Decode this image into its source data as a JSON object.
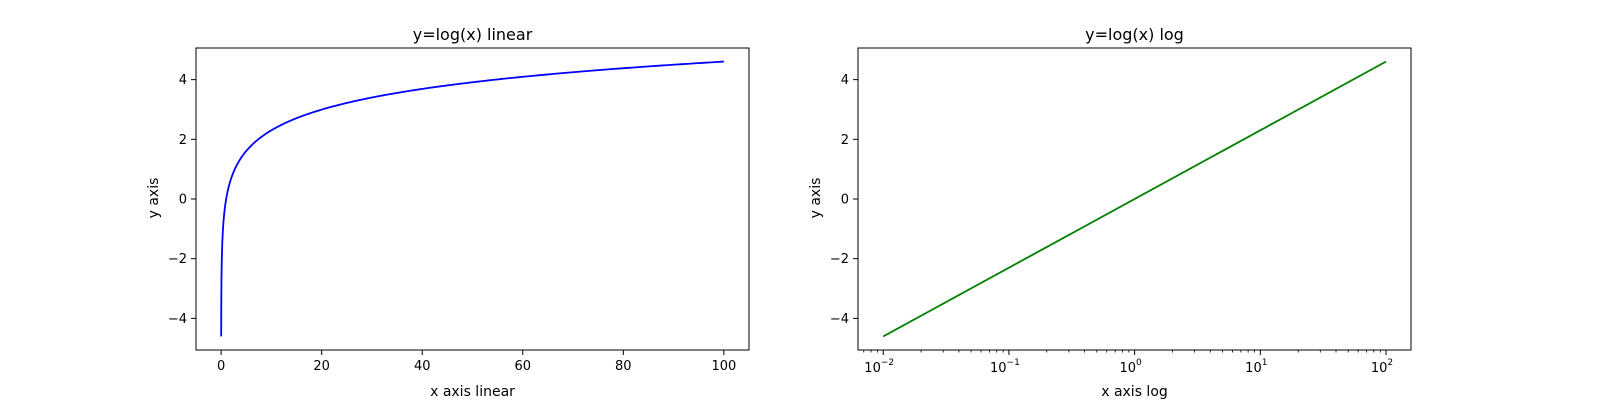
{
  "chart_data": [
    {
      "type": "line",
      "title": "y=log(x) linear",
      "xlabel": "x axis linear",
      "ylabel": "y axis",
      "xscale": "linear",
      "xlim": [
        -5,
        105
      ],
      "ylim": [
        -5.06,
        5.06
      ],
      "xticks": [
        0,
        20,
        40,
        60,
        80,
        100
      ],
      "xtick_labels": [
        "0",
        "20",
        "40",
        "60",
        "80",
        "100"
      ],
      "yticks": [
        -4,
        -2,
        0,
        2,
        4
      ],
      "ytick_labels": [
        "−4",
        "−2",
        "0",
        "2",
        "4"
      ],
      "grid": false,
      "series": [
        {
          "color": "#0000ff",
          "function": "ln(x)",
          "x_range": [
            0.01,
            100
          ],
          "x": [
            0.01,
            0.1,
            0.5,
            1,
            2,
            5,
            10,
            20,
            30,
            40,
            50,
            60,
            70,
            80,
            90,
            100
          ],
          "y": [
            -4.61,
            -2.3,
            -0.69,
            0,
            0.69,
            1.61,
            2.3,
            3.0,
            3.4,
            3.69,
            3.91,
            4.09,
            4.25,
            4.38,
            4.5,
            4.61
          ]
        }
      ]
    },
    {
      "type": "line",
      "title": "y=log(x) log",
      "xlabel": "x axis log",
      "ylabel": "y axis",
      "xscale": "log",
      "xlim": [
        0.0063,
        158
      ],
      "ylim": [
        -5.06,
        5.06
      ],
      "xticks": [
        0.01,
        0.1,
        1,
        10,
        100
      ],
      "xtick_labels": [
        {
          "base": "10",
          "exp": "−2"
        },
        {
          "base": "10",
          "exp": "−1"
        },
        {
          "base": "10",
          "exp": "0"
        },
        {
          "base": "10",
          "exp": "1"
        },
        {
          "base": "10",
          "exp": "2"
        }
      ],
      "yticks": [
        -4,
        -2,
        0,
        2,
        4
      ],
      "ytick_labels": [
        "−4",
        "−2",
        "0",
        "2",
        "4"
      ],
      "grid": false,
      "series": [
        {
          "color": "#008000",
          "function": "ln(x)",
          "x_range": [
            0.01,
            100
          ],
          "x": [
            0.01,
            0.1,
            1,
            10,
            100
          ],
          "y": [
            -4.61,
            -2.3,
            0,
            2.3,
            4.61
          ]
        }
      ]
    }
  ]
}
